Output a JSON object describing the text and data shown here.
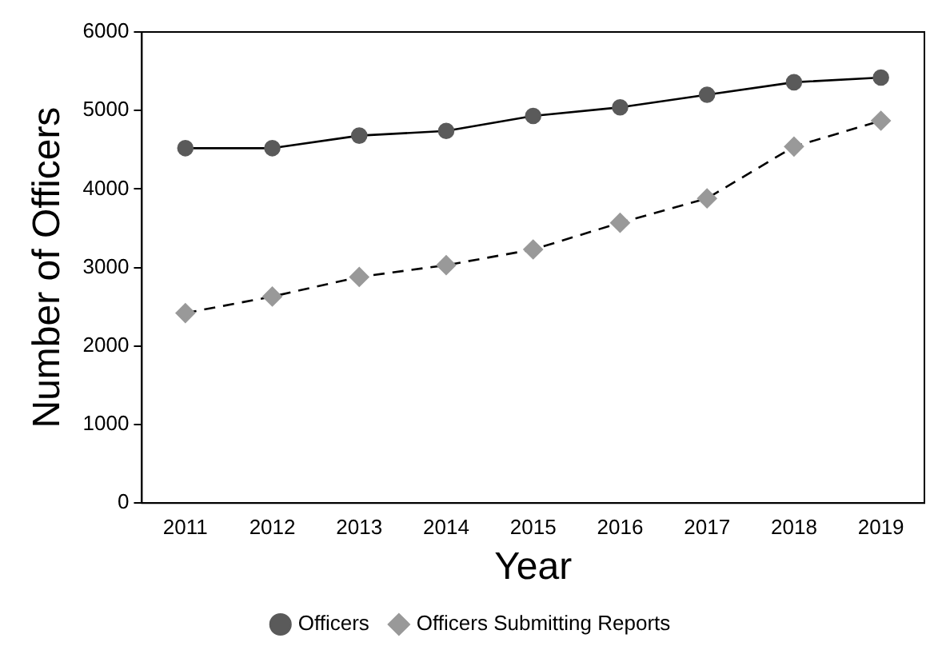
{
  "chart_data": {
    "type": "line",
    "xlabel": "Year",
    "ylabel": "Number of Officers",
    "categories": [
      "2011",
      "2012",
      "2013",
      "2014",
      "2015",
      "2016",
      "2017",
      "2018",
      "2019"
    ],
    "ylim": [
      0,
      6000
    ],
    "yticks": [
      0,
      1000,
      2000,
      3000,
      4000,
      5000,
      6000
    ],
    "grid": false,
    "legend": "bottom",
    "series": [
      {
        "name": "Officers",
        "color": "#5a5a5a",
        "marker": "circle",
        "line_style": "solid",
        "values": [
          4520,
          4520,
          4680,
          4740,
          4930,
          5040,
          5200,
          5360,
          5420
        ]
      },
      {
        "name": "Officers Submitting Reports",
        "color": "#999999",
        "marker": "diamond",
        "line_style": "dashed",
        "values": [
          2420,
          2630,
          2880,
          3030,
          3230,
          3570,
          3880,
          4540,
          4870
        ]
      }
    ]
  }
}
